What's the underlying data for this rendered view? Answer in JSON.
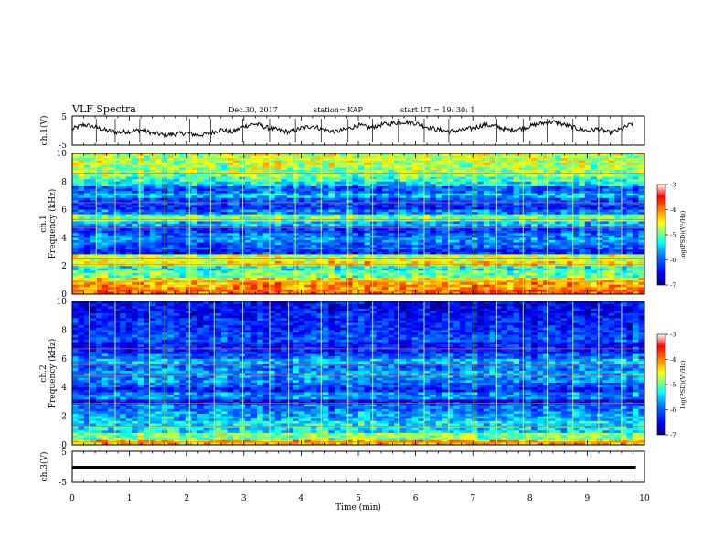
{
  "header": {
    "title": "VLF Spectra",
    "date": "Dec.30, 2017",
    "station": "station= KAP",
    "start_ut": "start  UT =   19: 30: 1"
  },
  "colors": {
    "colormap": [
      "#00007f",
      "#0000ff",
      "#0080ff",
      "#00ffff",
      "#80ff80",
      "#ffff00",
      "#ff8000",
      "#ff0000",
      "#ffffff"
    ],
    "trace": "#000000"
  },
  "chart_data": [
    {
      "type": "line",
      "panel": "ch1-waveform",
      "ylabel": "ch.1(V)",
      "ylim": [
        -5,
        5
      ],
      "y_ticks": [
        "5",
        "-5"
      ],
      "x_range": [
        0,
        10
      ],
      "series": [
        {
          "x": [
            0,
            0.2,
            0.4,
            0.6,
            0.8,
            1.0,
            1.2,
            1.4,
            1.6,
            1.8,
            2.0,
            2.2,
            2.4,
            2.6,
            2.8,
            3.0,
            3.2,
            3.4,
            3.6,
            3.8,
            4.0,
            4.2,
            4.4,
            4.6,
            4.8,
            5.0,
            5.2,
            5.4,
            5.6,
            5.8,
            6.0,
            6.2,
            6.4,
            6.6,
            6.8,
            7.0,
            7.2,
            7.4,
            7.6,
            7.8,
            8.0,
            8.2,
            8.4,
            8.6,
            8.8,
            9.0,
            9.2,
            9.4,
            9.6,
            9.8
          ],
          "y": [
            0.5,
            2,
            1.2,
            0,
            -0.6,
            -0.3,
            0.2,
            -0.8,
            -1.5,
            -1.2,
            -0.8,
            -1.6,
            -0.9,
            0.3,
            -0.5,
            1.5,
            2.3,
            1.0,
            0.2,
            -0.5,
            0.8,
            1.6,
            0.3,
            -0.4,
            0.5,
            1.8,
            1.0,
            2.0,
            2.5,
            3.0,
            2.5,
            1.2,
            0.3,
            -0.3,
            0.2,
            0.8,
            2.0,
            1.5,
            0.2,
            0.5,
            1.5,
            2.5,
            3.0,
            2.0,
            0.8,
            0.0,
            0.6,
            -0.8,
            0.5,
            2.5
          ]
        }
      ]
    },
    {
      "type": "heatmap",
      "panel": "ch1-spectrogram",
      "ylabel": "ch.1\nFrequency (kHz)",
      "ylim": [
        0,
        10
      ],
      "y_ticks": [
        "10",
        "8",
        "6",
        "4",
        "2",
        "0"
      ],
      "x_range": [
        0,
        10
      ],
      "colorbar": {
        "label": "log(PSD)(V²/Hz)",
        "range": [
          -7,
          -3
        ],
        "ticks": [
          "-3",
          "-4",
          "-5",
          "-6",
          "-7"
        ]
      },
      "band_profile": [
        {
          "f": 0.0,
          "v": -3.8
        },
        {
          "f": 0.4,
          "v": -4.1
        },
        {
          "f": 0.8,
          "v": -4.4
        },
        {
          "f": 1.2,
          "v": -5.0
        },
        {
          "f": 1.6,
          "v": -5.3
        },
        {
          "f": 2.0,
          "v": -4.4
        },
        {
          "f": 2.4,
          "v": -4.7
        },
        {
          "f": 2.8,
          "v": -6.3
        },
        {
          "f": 3.2,
          "v": -6.0
        },
        {
          "f": 3.6,
          "v": -5.8
        },
        {
          "f": 4.0,
          "v": -5.9
        },
        {
          "f": 4.4,
          "v": -6.2
        },
        {
          "f": 4.8,
          "v": -5.6
        },
        {
          "f": 5.2,
          "v": -5.0
        },
        {
          "f": 5.6,
          "v": -5.9
        },
        {
          "f": 6.0,
          "v": -6.3
        },
        {
          "f": 6.4,
          "v": -6.1
        },
        {
          "f": 6.8,
          "v": -5.6
        },
        {
          "f": 7.2,
          "v": -6.0
        },
        {
          "f": 7.6,
          "v": -5.4
        },
        {
          "f": 8.0,
          "v": -5.1
        },
        {
          "f": 8.4,
          "v": -4.9
        },
        {
          "f": 8.8,
          "v": -4.8
        },
        {
          "f": 9.2,
          "v": -4.7
        },
        {
          "f": 9.6,
          "v": -4.7
        }
      ],
      "line_frequencies": [
        0.3,
        0.9,
        2.1,
        2.5,
        4.7,
        5.3,
        6.5,
        8.6
      ],
      "impulses": [
        0.42,
        0.75,
        1.18,
        1.62,
        2.05,
        2.42,
        2.98,
        3.45,
        3.9,
        4.35,
        4.82,
        5.25,
        5.7,
        6.15,
        6.58,
        7.02,
        7.42,
        7.88,
        8.3,
        8.75,
        9.2,
        9.6
      ]
    },
    {
      "type": "heatmap",
      "panel": "ch2-spectrogram",
      "ylabel": "ch.2\nFrequency (kHz)",
      "ylim": [
        0,
        10
      ],
      "y_ticks": [
        "10",
        "8",
        "6",
        "4",
        "2",
        "0"
      ],
      "x_range": [
        0,
        10
      ],
      "colorbar": {
        "label": "log(PSD)(V²/Hz)",
        "range": [
          -7,
          -3
        ],
        "ticks": [
          "-3",
          "-4",
          "-5",
          "-6",
          "-7"
        ]
      },
      "band_profile": [
        {
          "f": 0.0,
          "v": -4.2
        },
        {
          "f": 0.4,
          "v": -4.9
        },
        {
          "f": 0.8,
          "v": -5.4
        },
        {
          "f": 1.2,
          "v": -5.4
        },
        {
          "f": 1.6,
          "v": -5.6
        },
        {
          "f": 2.0,
          "v": -5.7
        },
        {
          "f": 2.4,
          "v": -5.9
        },
        {
          "f": 2.8,
          "v": -6.4
        },
        {
          "f": 3.2,
          "v": -5.8
        },
        {
          "f": 3.6,
          "v": -6.3
        },
        {
          "f": 4.0,
          "v": -6.0
        },
        {
          "f": 4.4,
          "v": -5.8
        },
        {
          "f": 4.8,
          "v": -5.7
        },
        {
          "f": 5.2,
          "v": -5.9
        },
        {
          "f": 5.6,
          "v": -5.6
        },
        {
          "f": 6.0,
          "v": -6.0
        },
        {
          "f": 6.4,
          "v": -6.3
        },
        {
          "f": 6.8,
          "v": -6.4
        },
        {
          "f": 7.2,
          "v": -6.1
        },
        {
          "f": 7.6,
          "v": -6.2
        },
        {
          "f": 8.0,
          "v": -6.3
        },
        {
          "f": 8.4,
          "v": -6.3
        },
        {
          "f": 8.8,
          "v": -6.4
        },
        {
          "f": 9.2,
          "v": -6.5
        },
        {
          "f": 9.6,
          "v": -6.5
        }
      ],
      "line_frequencies": [
        0.2,
        1.3,
        2.9,
        4.8,
        5.6,
        6.7
      ],
      "impulses": [
        0.3,
        0.75,
        1.35,
        1.62,
        2.05,
        2.48,
        2.98,
        3.45,
        3.78,
        4.35,
        4.82,
        5.25,
        5.7,
        6.15,
        6.58,
        7.02,
        7.42,
        7.88,
        8.3,
        8.75,
        9.2,
        9.6
      ]
    },
    {
      "type": "line",
      "panel": "ch3-waveform",
      "ylabel": "ch.3(V)",
      "ylim": [
        -5,
        5
      ],
      "y_ticks": [
        "5",
        "-5"
      ],
      "x_range": [
        0,
        10
      ],
      "series": [
        {
          "x": [
            0,
            9.85
          ],
          "y": [
            0,
            0
          ]
        }
      ]
    }
  ],
  "x_axis": {
    "label": "Time  (min)",
    "ticks": [
      "0",
      "1",
      "2",
      "3",
      "4",
      "5",
      "6",
      "7",
      "8",
      "9",
      "10"
    ]
  }
}
